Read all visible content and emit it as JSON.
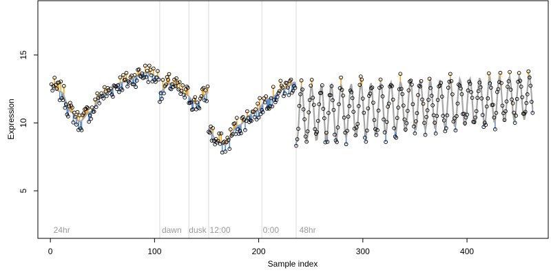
{
  "colors": {
    "trend": "#a6a6a6",
    "above": "#f4a81c",
    "below": "#5b8fd6",
    "vline": "#d9d9d9",
    "annotation": "#9a9a9a",
    "point_stroke": "#000000"
  },
  "chart_data": {
    "type": "scatter",
    "title": "",
    "xlabel": "Sample index",
    "ylabel": "Expression",
    "xlim": [
      -12,
      478
    ],
    "ylim": [
      1.5,
      19
    ],
    "xticks": [
      0,
      100,
      200,
      300,
      400
    ],
    "yticks": [
      5,
      10,
      15
    ],
    "xtick_labels": [
      "0",
      "100",
      "200",
      "300",
      "400"
    ],
    "ytick_labels": [
      "5",
      "10",
      "15"
    ],
    "grid": false,
    "legend": "none",
    "vlines": [
      105,
      133,
      152,
      203,
      236
    ],
    "annotations": [
      {
        "text": "24hr",
        "x": 3
      },
      {
        "text": "dawn",
        "x": 107
      },
      {
        "text": "dusk",
        "x": 133
      },
      {
        "text": "12:00",
        "x": 153
      },
      {
        "text": "0:00",
        "x": 204
      },
      {
        "text": "48hr",
        "x": 239
      }
    ],
    "segments": [
      {
        "start": 1,
        "end": 104,
        "anchors": [
          [
            1,
            12.7
          ],
          [
            10,
            12.3
          ],
          [
            20,
            10.8
          ],
          [
            28,
            10.1
          ],
          [
            38,
            10.8
          ],
          [
            50,
            12.1
          ],
          [
            70,
            13.0
          ],
          [
            92,
            13.7
          ],
          [
            104,
            13.4
          ]
        ]
      },
      {
        "start": 105,
        "end": 151,
        "anchors": [
          [
            105,
            12.3
          ],
          [
            115,
            12.9
          ],
          [
            130,
            12.1
          ],
          [
            140,
            11.4
          ],
          [
            151,
            12.2
          ]
        ]
      },
      {
        "start": 152,
        "end": 235,
        "anchors": [
          [
            152,
            9.6
          ],
          [
            160,
            8.6
          ],
          [
            168,
            8.4
          ],
          [
            180,
            9.8
          ],
          [
            195,
            10.7
          ],
          [
            210,
            11.8
          ],
          [
            225,
            12.5
          ],
          [
            235,
            13.0
          ]
        ]
      },
      {
        "start": 236,
        "end": 463,
        "periodic": {
          "period": 9.5,
          "mean": 10.6,
          "amp_start": 2.1,
          "amp_end": 1.6,
          "drift": 1.3
        }
      }
    ]
  }
}
